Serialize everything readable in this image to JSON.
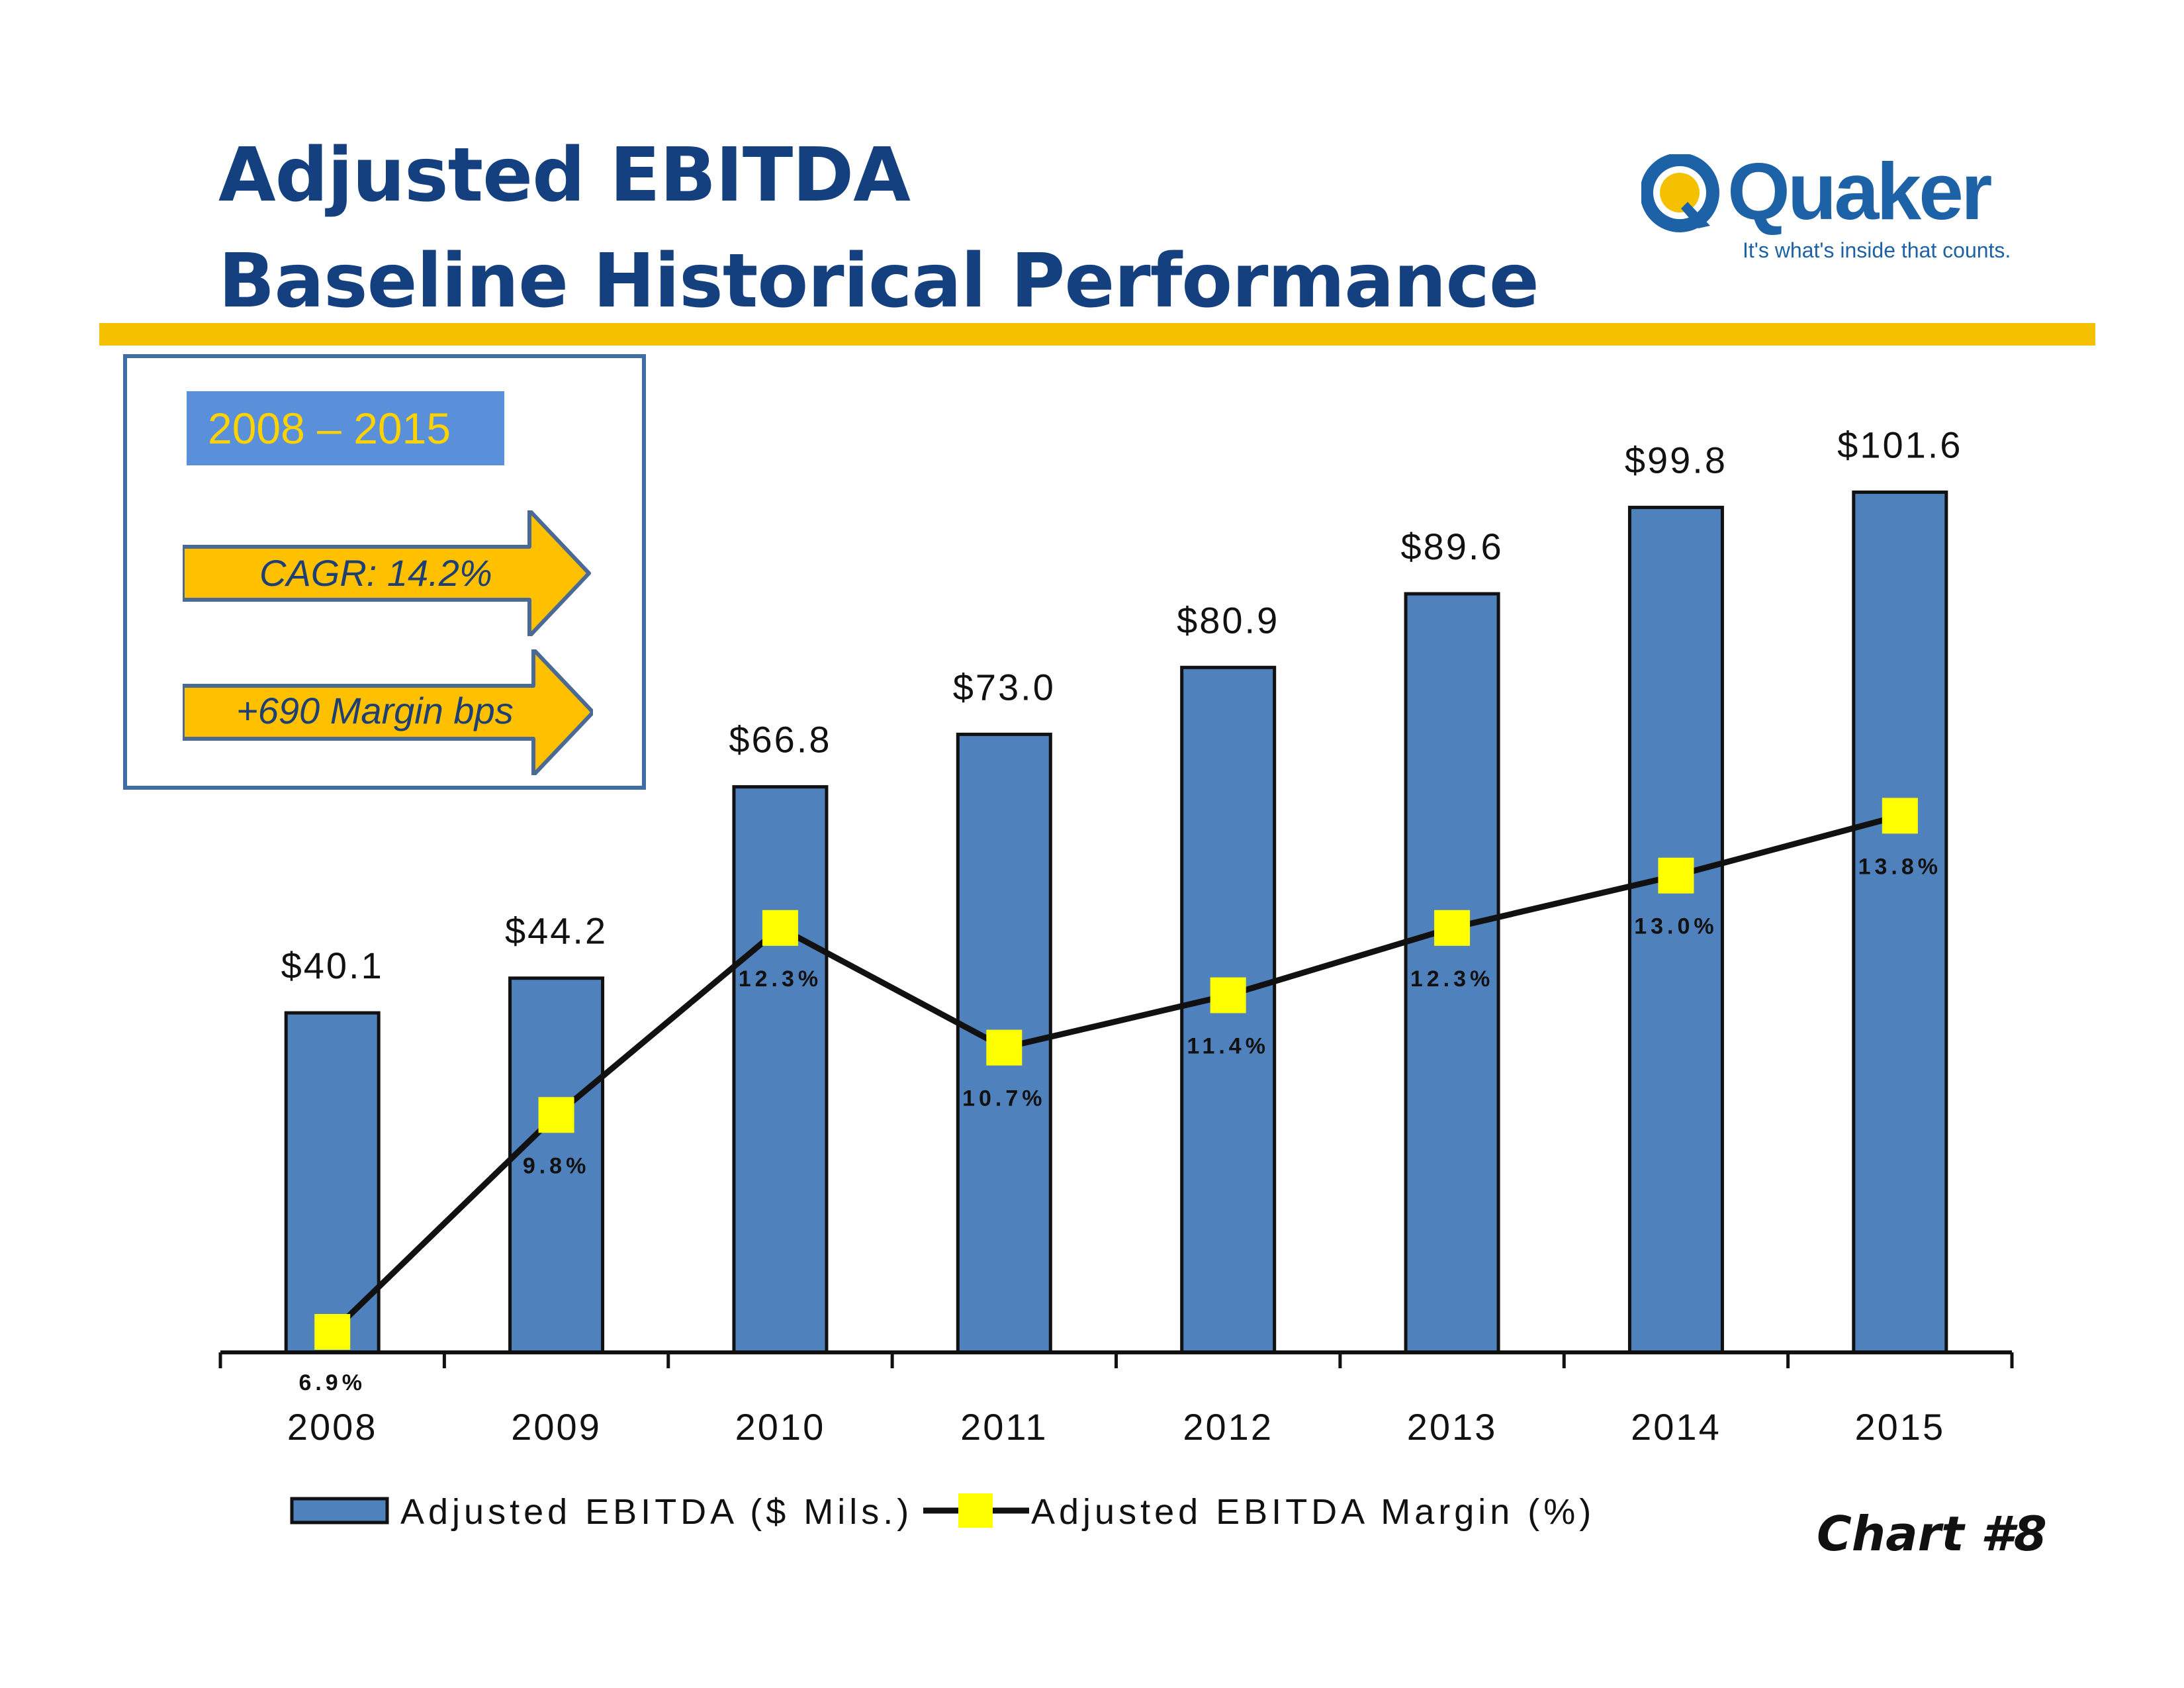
{
  "header": {
    "title_line1": "Adjusted EBITDA",
    "title_line2": "Baseline Historical Performance"
  },
  "logo": {
    "name": "Quaker",
    "tagline": "It's what's inside that counts."
  },
  "summary": {
    "period": "2008 – 2015",
    "cagr": "CAGR:  14.2%",
    "margin": "+690 Margin bps"
  },
  "footer": {
    "chart_number": "Chart #8"
  },
  "colors": {
    "bar": "#4f81bd",
    "line": "#111111",
    "marker": "#ffff00",
    "accent": "#f5c000",
    "title": "#14407f"
  },
  "chart_data": {
    "type": "bar",
    "categories": [
      "2008",
      "2009",
      "2010",
      "2011",
      "2012",
      "2013",
      "2014",
      "2015"
    ],
    "series": [
      {
        "name": "Adjusted EBITDA ($ Mils.)",
        "type": "bar",
        "values": [
          40.1,
          44.2,
          66.8,
          73.0,
          80.9,
          89.6,
          99.8,
          101.6
        ],
        "labels": [
          "$40.1",
          "$44.2",
          "$66.8",
          "$73.0",
          "$80.9",
          "$89.6",
          "$99.8",
          "$101.6"
        ]
      },
      {
        "name": "Adjusted EBITDA Margin (%)",
        "type": "line",
        "values": [
          6.9,
          9.8,
          12.3,
          10.7,
          11.4,
          12.3,
          13.0,
          13.8
        ],
        "labels": [
          "6.9%",
          "9.8%",
          "12.3%",
          "10.7%",
          "11.4%",
          "12.3%",
          "13.0%",
          "13.8%"
        ]
      }
    ],
    "legend_position": "bottom",
    "grid": false
  }
}
